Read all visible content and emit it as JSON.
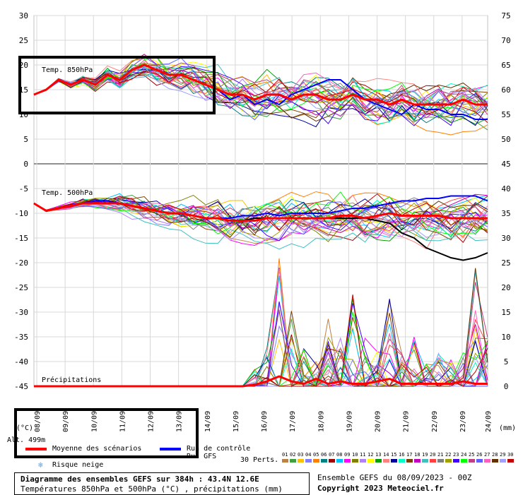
{
  "chart_data": {
    "type": "line",
    "x_dates": [
      "09/09",
      "10/09",
      "11/09",
      "12/09",
      "13/09",
      "14/09",
      "15/09",
      "16/09",
      "17/09",
      "18/09",
      "19/09",
      "20/09",
      "21/09",
      "22/09",
      "23/09",
      "24/09"
    ],
    "x_first_partial": "08/09",
    "left_ticks": [
      "30",
      "25",
      "20",
      "15",
      "10",
      "5",
      "0",
      "-5",
      "-10",
      "-15",
      "-20",
      "-25",
      "-30",
      "-35",
      "-40",
      "-45"
    ],
    "right_ticks": [
      "75",
      "70",
      "65",
      "60",
      "55",
      "50",
      "45",
      "40",
      "35",
      "30",
      "25",
      "20",
      "15",
      "10",
      "5",
      "0"
    ],
    "left_unit": "(°C)",
    "right_unit": "(mm)",
    "panels": {
      "t850": {
        "label": "Temp. 850hPa",
        "mean": [
          14,
          15,
          17,
          16,
          17,
          16,
          18,
          17,
          19,
          20,
          19,
          18,
          18,
          17,
          16,
          15,
          14,
          14,
          13,
          14,
          14,
          13,
          14,
          14,
          13,
          13,
          14,
          13,
          13,
          12,
          13,
          12,
          12,
          12,
          12,
          13,
          12,
          12
        ],
        "control": [
          14,
          15,
          17,
          16,
          17,
          16,
          18,
          17,
          19,
          20,
          19,
          18,
          18,
          17,
          16,
          15,
          13,
          14,
          12,
          13,
          12,
          14,
          15,
          16,
          17,
          17,
          15,
          13,
          12,
          11,
          10,
          12,
          11,
          11,
          10,
          10,
          9,
          9
        ],
        "spread": 4
      },
      "t500": {
        "label": "Temp. 500hPa",
        "mean": [
          -8,
          -9.5,
          -9,
          -8.5,
          -8,
          -8,
          -8,
          -8,
          -8.5,
          -9,
          -9.5,
          -10,
          -10,
          -10.5,
          -11,
          -11,
          -11.5,
          -11.5,
          -11.5,
          -11,
          -11,
          -11,
          -11,
          -11,
          -11,
          -10.5,
          -10.5,
          -11,
          -10.5,
          -10,
          -10.5,
          -10.5,
          -10.5,
          -10.5,
          -11,
          -11,
          -11,
          -11
        ],
        "control": [
          -8,
          -9.5,
          -9,
          -8.5,
          -8,
          -7.5,
          -7.5,
          -8,
          -8.5,
          -9,
          -9.5,
          -10,
          -10,
          -10.5,
          -11,
          -11,
          -11,
          -10.5,
          -10.5,
          -10,
          -10.5,
          -10,
          -10,
          -10,
          -10,
          -9.5,
          -9,
          -9,
          -8.5,
          -8,
          -7.5,
          -7.5,
          -7,
          -7,
          -6.5,
          -6.5,
          -6.5,
          -7.5
        ],
        "oper": [
          -8,
          -9.5,
          -9,
          -8.5,
          -8,
          -8,
          -8,
          -8,
          -8.5,
          -9,
          -9.5,
          -10,
          -10,
          -10.5,
          -11,
          -11,
          -11.5,
          -11.5,
          -11,
          -11,
          -11,
          -11,
          -11,
          -11,
          -11,
          -11,
          -11,
          -11,
          -11.5,
          -12,
          -14,
          -15,
          -17,
          -18,
          -19,
          -19.5,
          -19,
          -18
        ],
        "spread": 4
      },
      "precip": {
        "label": "Précipitations",
        "mean_mm": [
          0,
          0,
          0,
          0,
          0,
          0,
          0,
          0,
          0,
          0,
          0,
          0,
          0,
          0,
          0,
          0,
          0,
          0,
          0.3,
          1,
          2,
          1,
          0.5,
          1.5,
          0.5,
          1,
          0.5,
          0.5,
          1,
          1.5,
          0.5,
          0.5,
          0.5,
          0.5,
          0.5,
          1,
          0.5,
          0.5
        ],
        "peaks_mm": [
          0,
          0,
          0,
          0,
          0,
          0,
          0,
          0,
          0,
          0,
          0,
          0,
          0,
          0,
          0,
          0,
          0,
          0,
          4,
          8,
          26,
          16,
          8,
          5,
          14,
          10,
          20,
          10,
          8,
          18,
          8,
          10,
          5,
          8,
          6,
          8,
          25,
          10
        ]
      }
    }
  },
  "legend": {
    "mean": {
      "label": "Moyenne des scénarios",
      "color": "#ff0000"
    },
    "control": {
      "label": "Run de contrôle",
      "color": "#0000ff"
    },
    "oper": {
      "label": "Run GFS",
      "color": "#000000"
    },
    "snow": {
      "label": "Risque neige",
      "icon": "snowflake-icon"
    },
    "alt": "Alt. 499m",
    "perts_label": "30 Perts.",
    "perts": [
      "01",
      "02",
      "03",
      "04",
      "05",
      "06",
      "07",
      "08",
      "09",
      "10",
      "11",
      "12",
      "13",
      "14",
      "15",
      "16",
      "17",
      "18",
      "19",
      "20",
      "21",
      "22",
      "23",
      "24",
      "25",
      "26",
      "27",
      "28",
      "29",
      "30"
    ],
    "pert_colors": [
      "#c08040",
      "#40a040",
      "#ffc000",
      "#8080ff",
      "#ff8000",
      "#008080",
      "#a00000",
      "#00c0ff",
      "#ff00ff",
      "#808000",
      "#b080ff",
      "#ffff00",
      "#00a000",
      "#ff8080",
      "#0000a0",
      "#00ffc0",
      "#804000",
      "#c000c0",
      "#40c0c0",
      "#ff4040",
      "#808080",
      "#a0a000",
      "#4000ff",
      "#00ff00",
      "#c04080",
      "#6060ff",
      "#ff60c0",
      "#603000",
      "#a0a0ff",
      "#c00000"
    ]
  },
  "info": {
    "title": "Diagramme des ensembles GEFS sur 384h : 43.4N 12.6E",
    "subtitle": "Températures 850hPa et 500hPa (°C) , précipitations (mm)",
    "run": "Ensemble GEFS du 08/09/2023 - 00Z",
    "copyright": "Copyright 2023 Meteociel.fr"
  }
}
